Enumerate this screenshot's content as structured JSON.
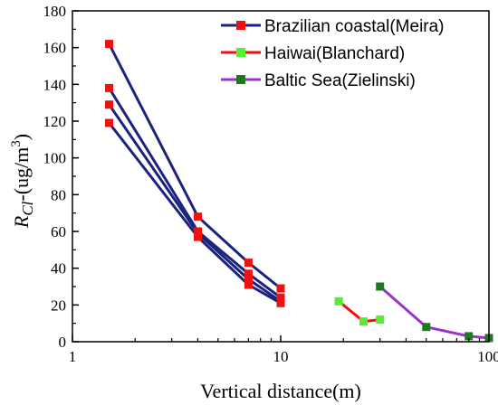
{
  "chart_data": {
    "type": "line",
    "xscale": "log",
    "xlim": [
      1,
      100
    ],
    "ylim": [
      0,
      180
    ],
    "x_ticks": [
      1,
      10,
      100
    ],
    "x_tick_labels": [
      "1",
      "10",
      "100"
    ],
    "y_ticks": [
      0,
      20,
      40,
      60,
      80,
      100,
      120,
      140,
      160,
      180
    ],
    "y_tick_labels": [
      "0",
      "20",
      "40",
      "60",
      "80",
      "100",
      "120",
      "140",
      "160",
      "180"
    ],
    "xlabel": "Vertical distance(m)",
    "ylabel_main": "R",
    "ylabel_sub": "Cl",
    "ylabel_rest": "-(ug/m",
    "ylabel_sup": "3",
    "ylabel_close": ")",
    "grid": false,
    "legend_position": "top-right",
    "legend": [
      {
        "label": "Brazilian coastal(Meira)",
        "line_color": "#1a237e",
        "marker_color": "#ee1111"
      },
      {
        "label": "Haiwai(Blanchard)",
        "line_color": "#ee1111",
        "marker_color": "#55ee33"
      },
      {
        "label": "Baltic Sea(Zielinski)",
        "line_color": "#9933cc",
        "marker_color": "#1f7a1f"
      }
    ],
    "series": [
      {
        "group": 0,
        "x": [
          1.5,
          4,
          7,
          10
        ],
        "y": [
          162,
          68,
          43,
          29
        ]
      },
      {
        "group": 0,
        "x": [
          1.5,
          4,
          7,
          10
        ],
        "y": [
          138,
          60,
          37,
          24
        ]
      },
      {
        "group": 0,
        "x": [
          1.5,
          4,
          7,
          10
        ],
        "y": [
          129,
          59,
          34,
          22
        ]
      },
      {
        "group": 0,
        "x": [
          1.5,
          4,
          7,
          10
        ],
        "y": [
          119,
          57,
          31,
          21
        ]
      },
      {
        "group": 1,
        "x": [
          19,
          25,
          30
        ],
        "y": [
          22,
          11,
          12
        ]
      },
      {
        "group": 2,
        "x": [
          30,
          50,
          80,
          100
        ],
        "y": [
          30,
          8,
          3,
          2
        ]
      }
    ]
  }
}
